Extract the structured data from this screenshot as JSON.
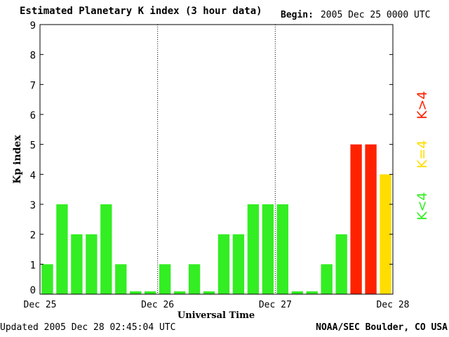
{
  "header": {
    "title": "Estimated Planetary K index (3 hour data)",
    "begin_label": "Begin:",
    "begin_value": "2005 Dec 25 0000 UTC"
  },
  "footer": {
    "updated": "Updated 2005 Dec 28 02:45:04 UTC",
    "source": "NOAA/SEC Boulder, CO USA"
  },
  "legend": [
    {
      "label": "K<4",
      "color": "#33ee22"
    },
    {
      "label": "K=4",
      "color": "#ffdd00"
    },
    {
      "label": "K>4",
      "color": "#ff2200"
    }
  ],
  "chart_data": {
    "type": "bar",
    "title": "Estimated Planetary K index (3 hour data)",
    "xlabel": "Universal Time",
    "ylabel": "Kp index",
    "ylim": [
      0,
      9
    ],
    "yticks": [
      0,
      1,
      2,
      3,
      4,
      5,
      6,
      7,
      8,
      9
    ],
    "xtick_labels": [
      "Dec 25",
      "Dec 26",
      "Dec 27",
      "Dec 28"
    ],
    "interval_hours": 3,
    "values": [
      1,
      3,
      2,
      2,
      3,
      1,
      0,
      0,
      1,
      0,
      1,
      0,
      2,
      2,
      3,
      3,
      3,
      0,
      0,
      1,
      2,
      5,
      5,
      4
    ],
    "colors": {
      "low": "#33ee22",
      "equal": "#ffdd00",
      "high": "#ff2200"
    },
    "day_dividers": true
  }
}
